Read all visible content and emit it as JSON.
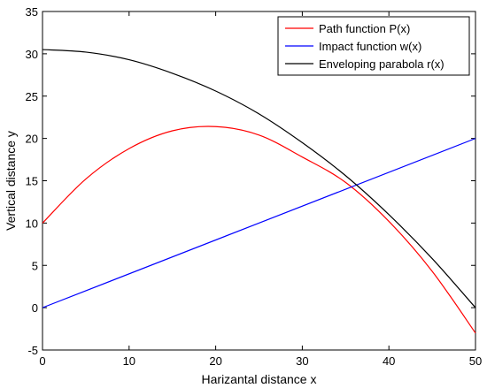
{
  "chart_data": {
    "type": "line",
    "title": "",
    "xlabel": "Harizantal distance x",
    "ylabel": "Vertical distance y",
    "xlim": [
      0,
      50
    ],
    "ylim": [
      -5,
      35
    ],
    "xticks": [
      0,
      10,
      20,
      30,
      40,
      50
    ],
    "yticks": [
      -5,
      0,
      5,
      10,
      15,
      20,
      25,
      30,
      35
    ],
    "grid": false,
    "legend_position": "top-right",
    "series": [
      {
        "name": "Path function P(x)",
        "color": "#ff0000",
        "x": [
          0,
          5,
          10,
          15,
          20,
          25,
          30,
          35,
          40,
          45,
          50
        ],
        "y": [
          10.0,
          15.2,
          18.8,
          20.9,
          21.4,
          20.4,
          17.8,
          14.8,
          10.2,
          4.3,
          -3.0
        ]
      },
      {
        "name": "Impact function w(x)",
        "color": "#0000ff",
        "x": [
          0,
          50
        ],
        "y": [
          0,
          20
        ]
      },
      {
        "name": "Enveloping parabola r(x)",
        "color": "#000000",
        "x": [
          0,
          5,
          10,
          15,
          20,
          25,
          30,
          35,
          40,
          45,
          50
        ],
        "y": [
          30.5,
          30.2,
          29.3,
          27.7,
          25.6,
          22.9,
          19.5,
          15.6,
          11.0,
          5.8,
          0.0
        ]
      }
    ]
  }
}
